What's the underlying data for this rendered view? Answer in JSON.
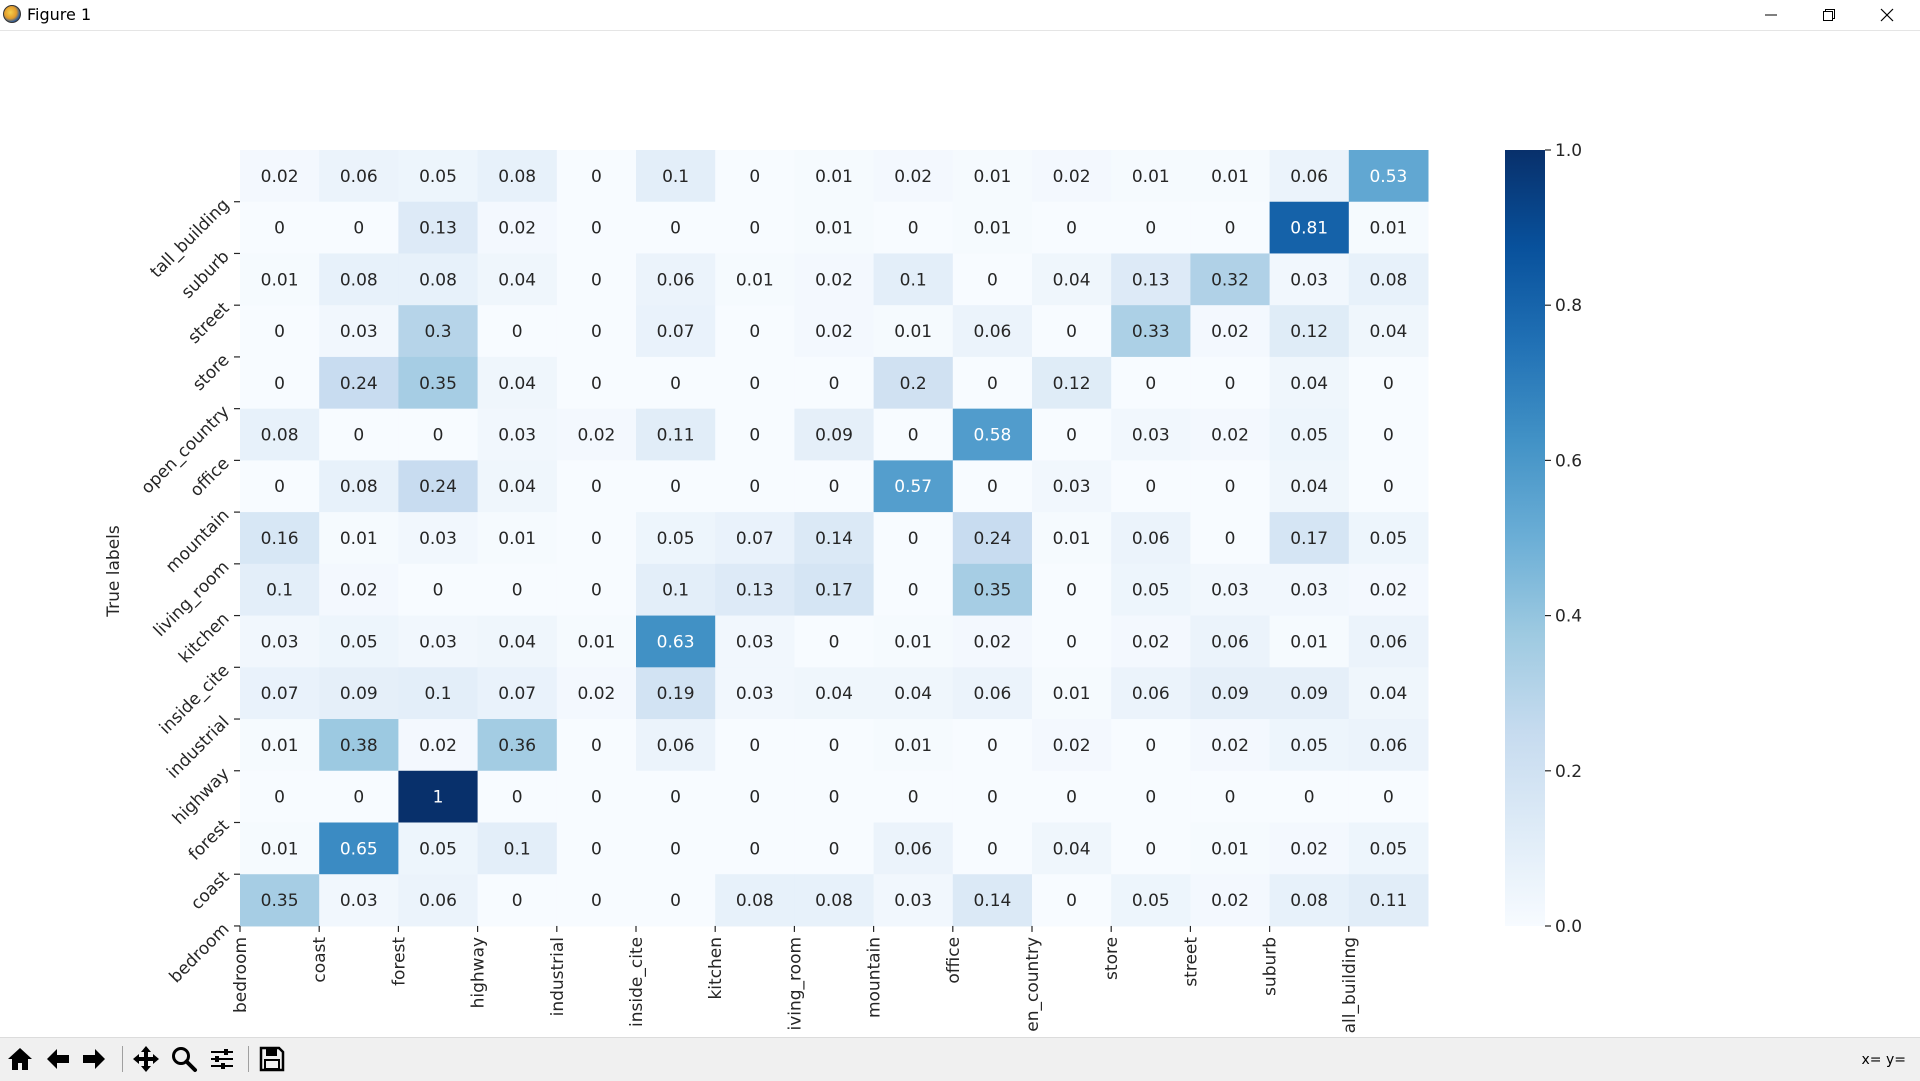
{
  "window": {
    "title": "Figure 1"
  },
  "toolbar": {
    "buttons": [
      "home-icon",
      "back-arrow-icon",
      "forward-arrow-icon",
      "pan-icon",
      "zoom-icon",
      "configure-subplots-icon",
      "save-icon"
    ],
    "coords_text": "x= y="
  },
  "colors": {
    "colormap_low": "#f7fbff",
    "colormap_high": "#08306b",
    "text_light": "#ffffff",
    "text_dark": "#262626"
  },
  "chart_data": {
    "type": "heatmap",
    "ylabel": "True labels",
    "xlabel": "",
    "x_tick_labels": [
      "bedroom",
      "coast",
      "forest",
      "highway",
      "industrial",
      "inside_cite",
      "kitchen",
      "iving_room",
      "mountain",
      "office",
      "en_country",
      "store",
      "street",
      "suburb",
      "all_building"
    ],
    "y_tick_labels": [
      "bedroom",
      "coast",
      "forest",
      "highway",
      "industrial",
      "inside_cite",
      "kitchen",
      "living_room",
      "mountain",
      "office",
      "open_country",
      "store",
      "street",
      "suburb",
      "tall_building"
    ],
    "rows": [
      [
        0.02,
        0.06,
        0.05,
        0.08,
        0,
        0.1,
        0,
        0.01,
        0.02,
        0.01,
        0.02,
        0.01,
        0.01,
        0.06,
        0.53
      ],
      [
        0,
        0,
        0.13,
        0.02,
        0,
        0,
        0,
        0.01,
        0,
        0.01,
        0,
        0,
        0,
        0.81,
        0.01
      ],
      [
        0.01,
        0.08,
        0.08,
        0.04,
        0,
        0.06,
        0.01,
        0.02,
        0.1,
        0,
        0.04,
        0.13,
        0.32,
        0.03,
        0.08
      ],
      [
        0,
        0.03,
        0.3,
        0,
        0,
        0.07,
        0,
        0.02,
        0.01,
        0.06,
        0,
        0.33,
        0.02,
        0.12,
        0.04
      ],
      [
        0,
        0.24,
        0.35,
        0.04,
        0,
        0,
        0,
        0,
        0.2,
        0,
        0.12,
        0,
        0,
        0.04,
        0
      ],
      [
        0.08,
        0,
        0,
        0.03,
        0.02,
        0.11,
        0,
        0.09,
        0,
        0.58,
        0,
        0.03,
        0.02,
        0.05,
        0
      ],
      [
        0,
        0.08,
        0.24,
        0.04,
        0,
        0,
        0,
        0,
        0.57,
        0,
        0.03,
        0,
        0,
        0.04,
        0
      ],
      [
        0.16,
        0.01,
        0.03,
        0.01,
        0,
        0.05,
        0.07,
        0.14,
        0,
        0.24,
        0.01,
        0.06,
        0,
        0.17,
        0.05
      ],
      [
        0.1,
        0.02,
        0,
        0,
        0,
        0.1,
        0.13,
        0.17,
        0,
        0.35,
        0,
        0.05,
        0.03,
        0.03,
        0.02
      ],
      [
        0.03,
        0.05,
        0.03,
        0.04,
        0.01,
        0.63,
        0.03,
        0,
        0.01,
        0.02,
        0,
        0.02,
        0.06,
        0.01,
        0.06
      ],
      [
        0.07,
        0.09,
        0.1,
        0.07,
        0.02,
        0.19,
        0.03,
        0.04,
        0.04,
        0.06,
        0.01,
        0.06,
        0.09,
        0.09,
        0.04
      ],
      [
        0.01,
        0.38,
        0.02,
        0.36,
        0,
        0.06,
        0,
        0,
        0.01,
        0,
        0.02,
        0,
        0.02,
        0.05,
        0.06
      ],
      [
        0,
        0,
        1,
        0,
        0,
        0,
        0,
        0,
        0,
        0,
        0,
        0,
        0,
        0,
        0
      ],
      [
        0.01,
        0.65,
        0.05,
        0.1,
        0,
        0,
        0,
        0,
        0.06,
        0,
        0.04,
        0,
        0.01,
        0.02,
        0.05
      ],
      [
        0.35,
        0.03,
        0.06,
        0,
        0,
        0,
        0.08,
        0.08,
        0.03,
        0.14,
        0,
        0.05,
        0.02,
        0.08,
        0.11
      ]
    ],
    "colorbar": {
      "range": [
        0.0,
        1.0
      ],
      "ticks": [
        "0.0",
        "0.2",
        "0.4",
        "0.6",
        "0.8",
        "1.0"
      ]
    },
    "colormap": "Blues"
  }
}
